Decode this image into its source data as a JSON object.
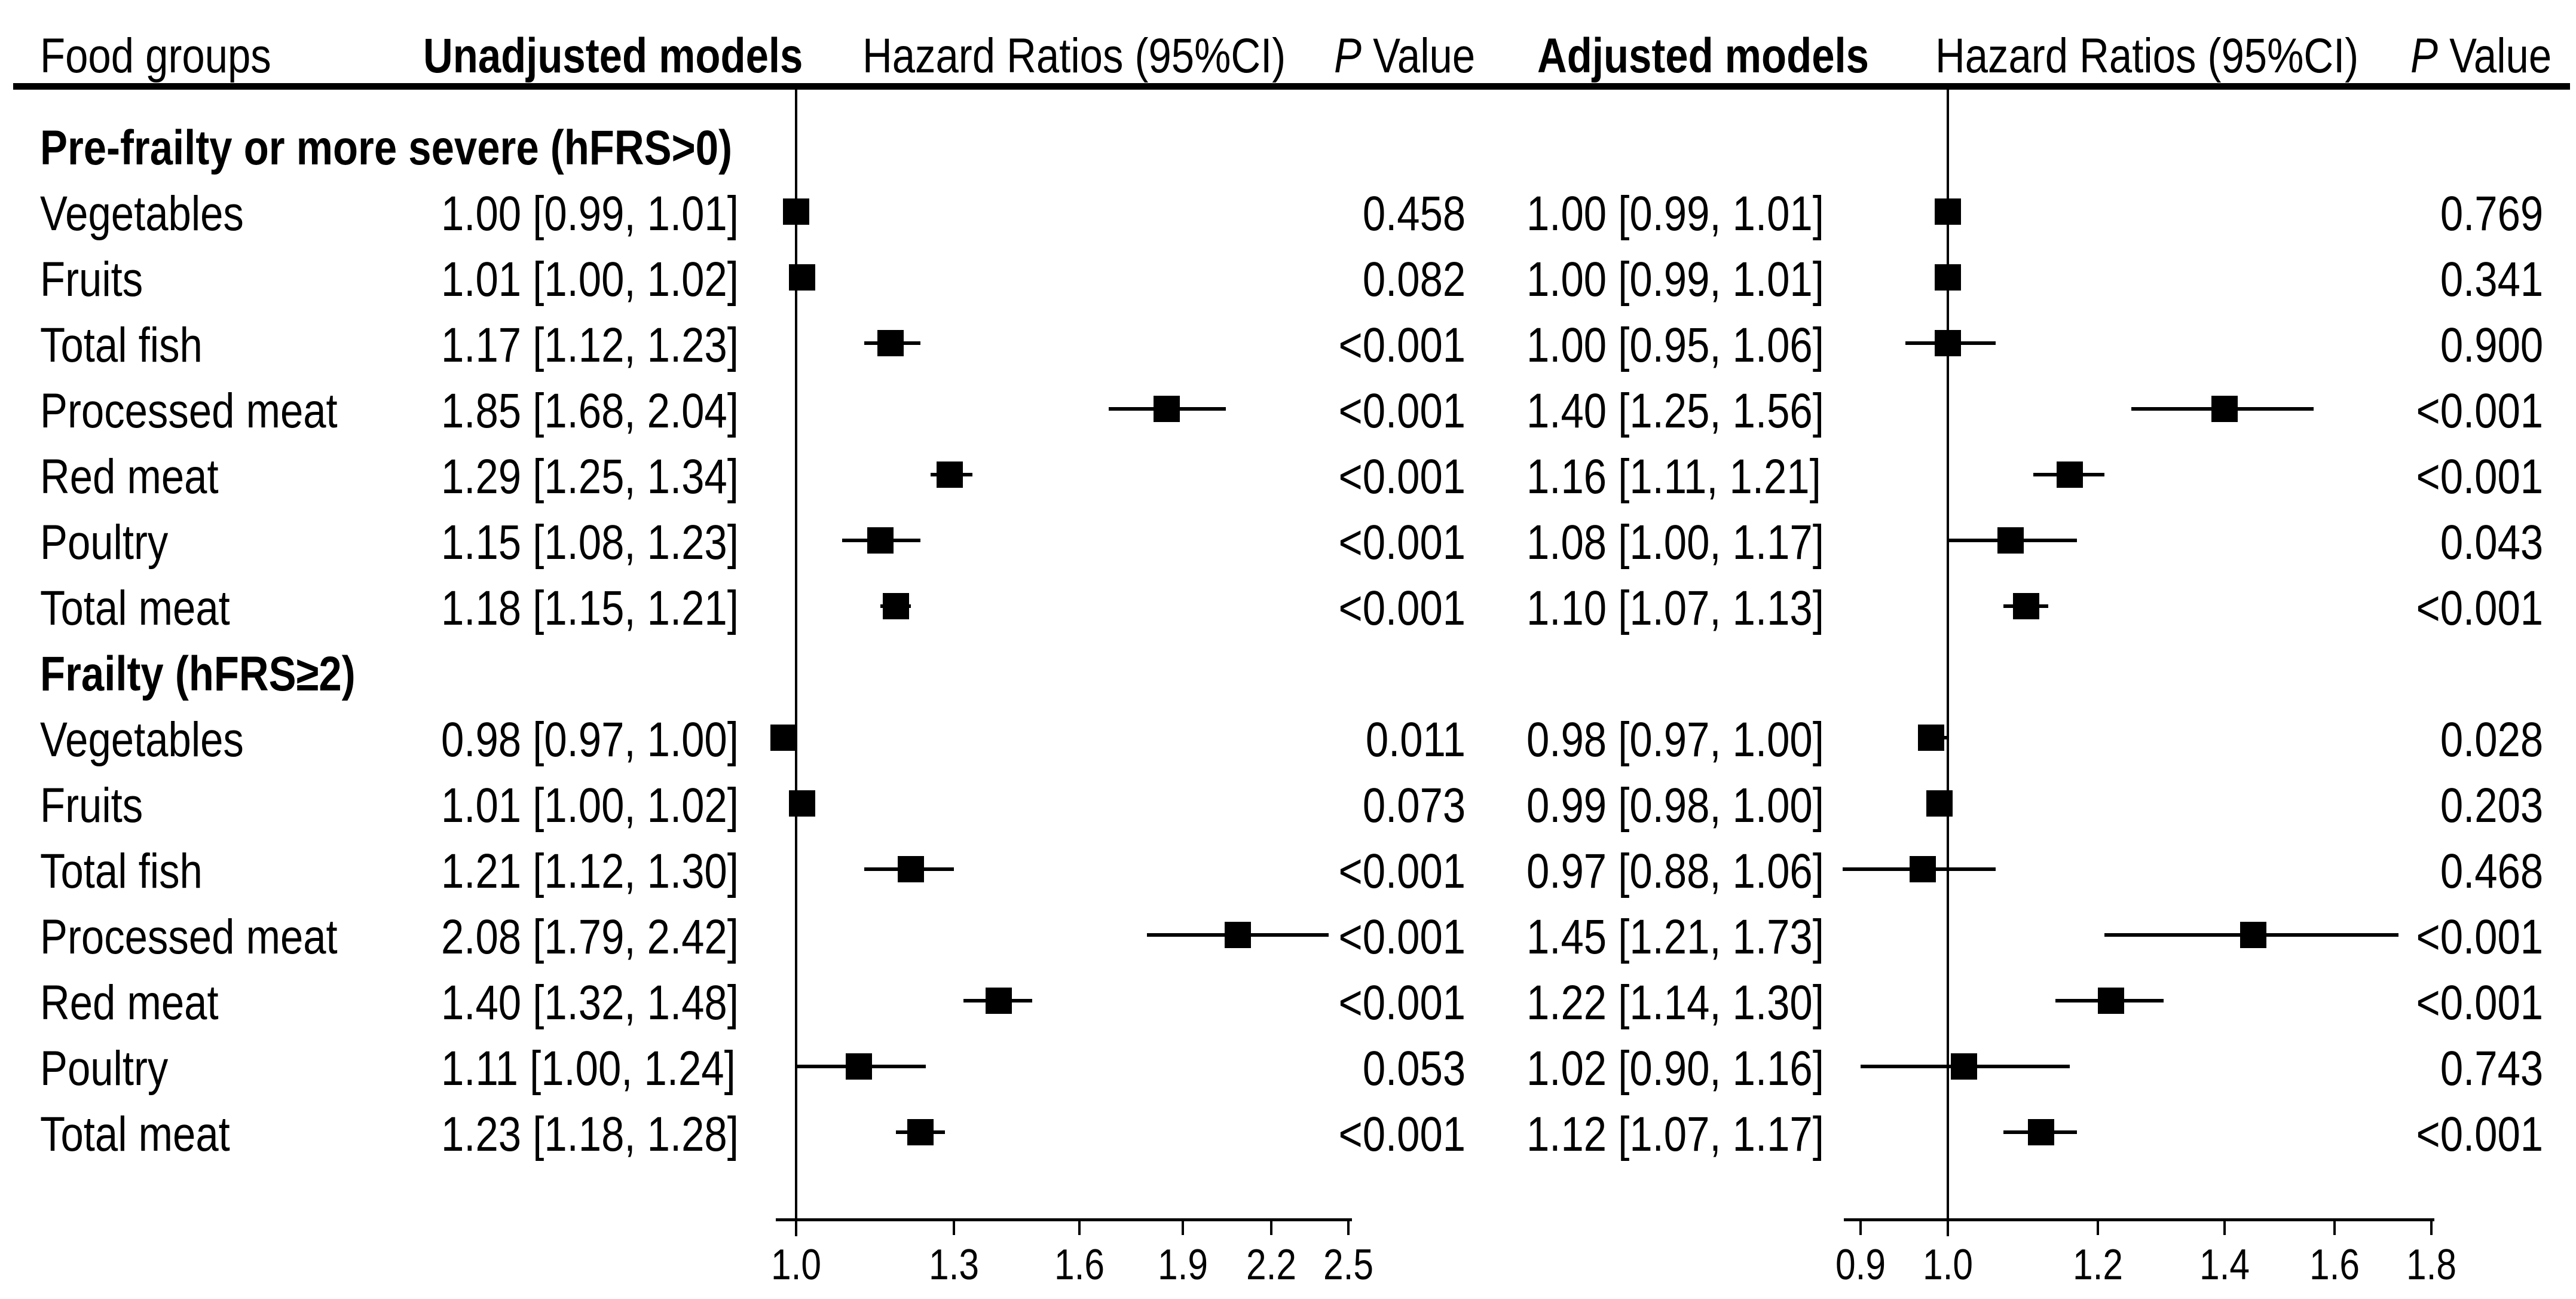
{
  "header": {
    "food_groups": "Food groups",
    "unadjusted_models": "Unadjusted models",
    "hazard_ratios_1": "Hazard Ratios (95%CI)",
    "p_value_1": {
      "p": "P",
      "rest": " Value"
    },
    "adjusted_models": "Adjusted models",
    "hazard_ratios_2": "Hazard Ratios (95%CI)",
    "p_value_2": {
      "p": "P",
      "rest": " Value"
    }
  },
  "colors": {
    "background": "#ffffff",
    "text": "#000000",
    "marker": "#000000",
    "line": "#000000"
  },
  "chart_data": {
    "type": "forest",
    "scale": "log10",
    "marker_shape": "square",
    "panels": [
      {
        "name": "Unadjusted models",
        "ref_line": 1.0,
        "tick_labels": [
          "1.0",
          "1.3",
          "1.6",
          "1.9",
          "2.2",
          "2.5"
        ],
        "axis_range": [
          0.97,
          2.5
        ]
      },
      {
        "name": "Adjusted models",
        "ref_line": 1.0,
        "tick_labels": [
          "0.9",
          "1.0",
          "1.2",
          "1.4",
          "1.6",
          "1.8"
        ],
        "axis_range": [
          0.88,
          1.8
        ]
      }
    ],
    "sections": [
      {
        "label": "Pre-frailty or more severe (hFRS>0)",
        "rows": [
          {
            "food": "Vegetables",
            "unadjusted": {
              "hr": 1.0,
              "lo": 0.99,
              "hi": 1.01,
              "text": "1.00 [0.99, 1.01]",
              "p": "0.458"
            },
            "adjusted": {
              "hr": 1.0,
              "lo": 0.99,
              "hi": 1.01,
              "text": "1.00 [0.99, 1.01]",
              "p": "0.769"
            }
          },
          {
            "food": "Fruits",
            "unadjusted": {
              "hr": 1.01,
              "lo": 1.0,
              "hi": 1.02,
              "text": "1.01 [1.00, 1.02]",
              "p": "0.082"
            },
            "adjusted": {
              "hr": 1.0,
              "lo": 0.99,
              "hi": 1.01,
              "text": "1.00 [0.99, 1.01]",
              "p": "0.341"
            }
          },
          {
            "food": "Total fish",
            "unadjusted": {
              "hr": 1.17,
              "lo": 1.12,
              "hi": 1.23,
              "text": "1.17 [1.12, 1.23]",
              "p": "<0.001"
            },
            "adjusted": {
              "hr": 1.0,
              "lo": 0.95,
              "hi": 1.06,
              "text": "1.00 [0.95, 1.06]",
              "p": "0.900"
            }
          },
          {
            "food": "Processed meat",
            "unadjusted": {
              "hr": 1.85,
              "lo": 1.68,
              "hi": 2.04,
              "text": "1.85 [1.68, 2.04]",
              "p": "<0.001"
            },
            "adjusted": {
              "hr": 1.4,
              "lo": 1.25,
              "hi": 1.56,
              "text": "1.40 [1.25, 1.56]",
              "p": "<0.001"
            }
          },
          {
            "food": "Red meat",
            "unadjusted": {
              "hr": 1.29,
              "lo": 1.25,
              "hi": 1.34,
              "text": "1.29 [1.25, 1.34]",
              "p": "<0.001"
            },
            "adjusted": {
              "hr": 1.16,
              "lo": 1.11,
              "hi": 1.21,
              "text": "1.16 [1.11, 1.21]",
              "p": "<0.001"
            }
          },
          {
            "food": "Poultry",
            "unadjusted": {
              "hr": 1.15,
              "lo": 1.08,
              "hi": 1.23,
              "text": "1.15 [1.08, 1.23]",
              "p": "<0.001"
            },
            "adjusted": {
              "hr": 1.08,
              "lo": 1.0,
              "hi": 1.17,
              "text": "1.08 [1.00, 1.17]",
              "p": "0.043"
            }
          },
          {
            "food": "Total meat",
            "unadjusted": {
              "hr": 1.18,
              "lo": 1.15,
              "hi": 1.21,
              "text": "1.18 [1.15, 1.21]",
              "p": "<0.001"
            },
            "adjusted": {
              "hr": 1.1,
              "lo": 1.07,
              "hi": 1.13,
              "text": "1.10 [1.07, 1.13]",
              "p": "<0.001"
            }
          }
        ]
      },
      {
        "label": "Frailty (hFRS≥2)",
        "rows": [
          {
            "food": "Vegetables",
            "unadjusted": {
              "hr": 0.98,
              "lo": 0.97,
              "hi": 1.0,
              "text": "0.98 [0.97, 1.00]",
              "p": "0.011"
            },
            "adjusted": {
              "hr": 0.98,
              "lo": 0.97,
              "hi": 1.0,
              "text": "0.98 [0.97, 1.00]",
              "p": "0.028"
            }
          },
          {
            "food": "Fruits",
            "unadjusted": {
              "hr": 1.01,
              "lo": 1.0,
              "hi": 1.02,
              "text": "1.01 [1.00, 1.02]",
              "p": "0.073"
            },
            "adjusted": {
              "hr": 0.99,
              "lo": 0.98,
              "hi": 1.0,
              "text": "0.99 [0.98, 1.00]",
              "p": "0.203"
            }
          },
          {
            "food": "Total fish",
            "unadjusted": {
              "hr": 1.21,
              "lo": 1.12,
              "hi": 1.3,
              "text": "1.21 [1.12, 1.30]",
              "p": "<0.001"
            },
            "adjusted": {
              "hr": 0.97,
              "lo": 0.88,
              "hi": 1.06,
              "text": "0.97 [0.88, 1.06]",
              "p": "0.468"
            }
          },
          {
            "food": "Processed meat",
            "unadjusted": {
              "hr": 2.08,
              "lo": 1.79,
              "hi": 2.42,
              "text": "2.08 [1.79, 2.42]",
              "p": "<0.001"
            },
            "adjusted": {
              "hr": 1.45,
              "lo": 1.21,
              "hi": 1.73,
              "text": "1.45 [1.21, 1.73]",
              "p": "<0.001"
            }
          },
          {
            "food": "Red meat",
            "unadjusted": {
              "hr": 1.4,
              "lo": 1.32,
              "hi": 1.48,
              "text": "1.40 [1.32, 1.48]",
              "p": "<0.001"
            },
            "adjusted": {
              "hr": 1.22,
              "lo": 1.14,
              "hi": 1.3,
              "text": "1.22 [1.14, 1.30]",
              "p": "<0.001"
            }
          },
          {
            "food": "Poultry",
            "unadjusted": {
              "hr": 1.11,
              "lo": 1.0,
              "hi": 1.24,
              "text": "1.11 [1.00, 1.24]",
              "p": "0.053"
            },
            "adjusted": {
              "hr": 1.02,
              "lo": 0.9,
              "hi": 1.16,
              "text": "1.02 [0.90, 1.16]",
              "p": "0.743"
            }
          },
          {
            "food": "Total meat",
            "unadjusted": {
              "hr": 1.23,
              "lo": 1.18,
              "hi": 1.28,
              "text": "1.23 [1.18, 1.28]",
              "p": "<0.001"
            },
            "adjusted": {
              "hr": 1.12,
              "lo": 1.07,
              "hi": 1.17,
              "text": "1.12 [1.07, 1.17]",
              "p": "<0.001"
            }
          }
        ]
      }
    ]
  }
}
